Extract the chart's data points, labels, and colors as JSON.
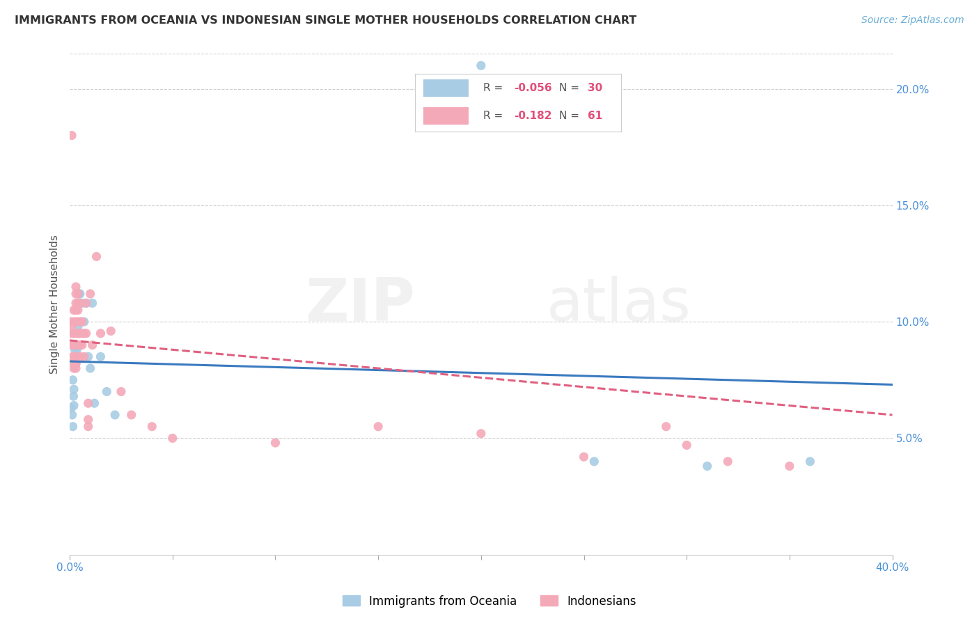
{
  "title": "IMMIGRANTS FROM OCEANIA VS INDONESIAN SINGLE MOTHER HOUSEHOLDS CORRELATION CHART",
  "source": "Source: ZipAtlas.com",
  "ylabel": "Single Mother Households",
  "right_yticks": [
    "5.0%",
    "10.0%",
    "15.0%",
    "20.0%"
  ],
  "right_ytick_vals": [
    0.05,
    0.1,
    0.15,
    0.2
  ],
  "legend_r_blue": "-0.056",
  "legend_n_blue": "30",
  "legend_r_pink": "-0.182",
  "legend_n_pink": "61",
  "blue_color": "#a8cce4",
  "pink_color": "#f4a9b8",
  "blue_line_color": "#3a7abf",
  "pink_line_color": "#e06080",
  "xlim": [
    0.0,
    0.4
  ],
  "ylim": [
    0.0,
    0.215
  ],
  "blue_scatter": [
    [
      0.0008,
      0.063
    ],
    [
      0.0012,
      0.06
    ],
    [
      0.0015,
      0.055
    ],
    [
      0.0015,
      0.075
    ],
    [
      0.0018,
      0.068
    ],
    [
      0.002,
      0.071
    ],
    [
      0.002,
      0.064
    ],
    [
      0.0025,
      0.088
    ],
    [
      0.003,
      0.082
    ],
    [
      0.003,
      0.09
    ],
    [
      0.0035,
      0.088
    ],
    [
      0.004,
      0.098
    ],
    [
      0.004,
      0.095
    ],
    [
      0.0045,
      0.112
    ],
    [
      0.005,
      0.112
    ],
    [
      0.005,
      0.1
    ],
    [
      0.006,
      0.108
    ],
    [
      0.007,
      0.1
    ],
    [
      0.008,
      0.108
    ],
    [
      0.009,
      0.085
    ],
    [
      0.01,
      0.08
    ],
    [
      0.011,
      0.108
    ],
    [
      0.012,
      0.065
    ],
    [
      0.015,
      0.085
    ],
    [
      0.018,
      0.07
    ],
    [
      0.022,
      0.06
    ],
    [
      0.2,
      0.21
    ],
    [
      0.255,
      0.04
    ],
    [
      0.31,
      0.038
    ],
    [
      0.36,
      0.04
    ]
  ],
  "pink_scatter": [
    [
      0.0005,
      0.1
    ],
    [
      0.0008,
      0.098
    ],
    [
      0.001,
      0.18
    ],
    [
      0.001,
      0.095
    ],
    [
      0.0012,
      0.09
    ],
    [
      0.0015,
      0.085
    ],
    [
      0.002,
      0.105
    ],
    [
      0.002,
      0.1
    ],
    [
      0.002,
      0.095
    ],
    [
      0.002,
      0.09
    ],
    [
      0.002,
      0.085
    ],
    [
      0.002,
      0.082
    ],
    [
      0.002,
      0.08
    ],
    [
      0.003,
      0.115
    ],
    [
      0.003,
      0.112
    ],
    [
      0.003,
      0.108
    ],
    [
      0.003,
      0.105
    ],
    [
      0.003,
      0.1
    ],
    [
      0.003,
      0.095
    ],
    [
      0.003,
      0.09
    ],
    [
      0.003,
      0.085
    ],
    [
      0.003,
      0.082
    ],
    [
      0.003,
      0.08
    ],
    [
      0.004,
      0.112
    ],
    [
      0.004,
      0.108
    ],
    [
      0.004,
      0.105
    ],
    [
      0.004,
      0.1
    ],
    [
      0.004,
      0.095
    ],
    [
      0.004,
      0.09
    ],
    [
      0.005,
      0.108
    ],
    [
      0.005,
      0.1
    ],
    [
      0.005,
      0.095
    ],
    [
      0.005,
      0.09
    ],
    [
      0.005,
      0.085
    ],
    [
      0.006,
      0.1
    ],
    [
      0.006,
      0.095
    ],
    [
      0.006,
      0.09
    ],
    [
      0.007,
      0.095
    ],
    [
      0.007,
      0.085
    ],
    [
      0.008,
      0.108
    ],
    [
      0.008,
      0.095
    ],
    [
      0.009,
      0.065
    ],
    [
      0.009,
      0.058
    ],
    [
      0.009,
      0.055
    ],
    [
      0.01,
      0.112
    ],
    [
      0.011,
      0.09
    ],
    [
      0.013,
      0.128
    ],
    [
      0.015,
      0.095
    ],
    [
      0.02,
      0.096
    ],
    [
      0.025,
      0.07
    ],
    [
      0.03,
      0.06
    ],
    [
      0.04,
      0.055
    ],
    [
      0.05,
      0.05
    ],
    [
      0.1,
      0.048
    ],
    [
      0.15,
      0.055
    ],
    [
      0.2,
      0.052
    ],
    [
      0.25,
      0.042
    ],
    [
      0.29,
      0.055
    ],
    [
      0.3,
      0.047
    ],
    [
      0.32,
      0.04
    ],
    [
      0.35,
      0.038
    ]
  ],
  "blue_trend": {
    "x_start": 0.0,
    "y_start": 0.083,
    "x_end": 0.4,
    "y_end": 0.073
  },
  "pink_trend": {
    "x_start": 0.0,
    "y_start": 0.092,
    "x_end": 0.4,
    "y_end": 0.06
  }
}
